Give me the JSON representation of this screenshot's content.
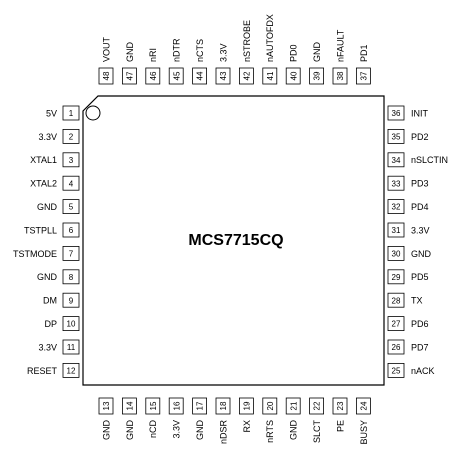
{
  "chip": {
    "name": "MCS7715CQ"
  },
  "pins": {
    "left": [
      {
        "number": 1,
        "label": "5V"
      },
      {
        "number": 2,
        "label": "3.3V"
      },
      {
        "number": 3,
        "label": "XTAL1"
      },
      {
        "number": 4,
        "label": "XTAL2"
      },
      {
        "number": 5,
        "label": "GND"
      },
      {
        "number": 6,
        "label": "TSTPLL"
      },
      {
        "number": 7,
        "label": "TSTMODE"
      },
      {
        "number": 8,
        "label": "GND"
      },
      {
        "number": 9,
        "label": "DM"
      },
      {
        "number": 10,
        "label": "DP"
      },
      {
        "number": 11,
        "label": "3.3V"
      },
      {
        "number": 12,
        "label": "RESET"
      }
    ],
    "bottom": [
      {
        "number": 13,
        "label": "GND"
      },
      {
        "number": 14,
        "label": "GND"
      },
      {
        "number": 15,
        "label": "nCD"
      },
      {
        "number": 16,
        "label": "3.3V"
      },
      {
        "number": 17,
        "label": "GND"
      },
      {
        "number": 18,
        "label": "nDSR"
      },
      {
        "number": 19,
        "label": "RX"
      },
      {
        "number": 20,
        "label": "nRTS"
      },
      {
        "number": 21,
        "label": "GND"
      },
      {
        "number": 22,
        "label": "SLCT"
      },
      {
        "number": 23,
        "label": "PE"
      },
      {
        "number": 24,
        "label": "BUSY"
      }
    ],
    "right": [
      {
        "number": 36,
        "label": "INIT"
      },
      {
        "number": 35,
        "label": "PD2"
      },
      {
        "number": 34,
        "label": "nSLCTIN"
      },
      {
        "number": 33,
        "label": "PD3"
      },
      {
        "number": 32,
        "label": "PD4"
      },
      {
        "number": 31,
        "label": "3.3V"
      },
      {
        "number": 30,
        "label": "GND"
      },
      {
        "number": 29,
        "label": "PD5"
      },
      {
        "number": 28,
        "label": "TX"
      },
      {
        "number": 27,
        "label": "PD6"
      },
      {
        "number": 26,
        "label": "PD7"
      },
      {
        "number": 25,
        "label": "nACK"
      }
    ],
    "top": [
      {
        "number": 48,
        "label": "VOUT"
      },
      {
        "number": 47,
        "label": "GND"
      },
      {
        "number": 46,
        "label": "nRI"
      },
      {
        "number": 45,
        "label": "nDTR"
      },
      {
        "number": 44,
        "label": "nCTS"
      },
      {
        "number": 43,
        "label": "3.3V"
      },
      {
        "number": 42,
        "label": "nSTROBE"
      },
      {
        "number": 41,
        "label": "nAUTOFDX"
      },
      {
        "number": 40,
        "label": "PD0"
      },
      {
        "number": 39,
        "label": "GND"
      },
      {
        "number": 38,
        "label": "nFAULT"
      },
      {
        "number": 37,
        "label": "PD1"
      }
    ]
  }
}
